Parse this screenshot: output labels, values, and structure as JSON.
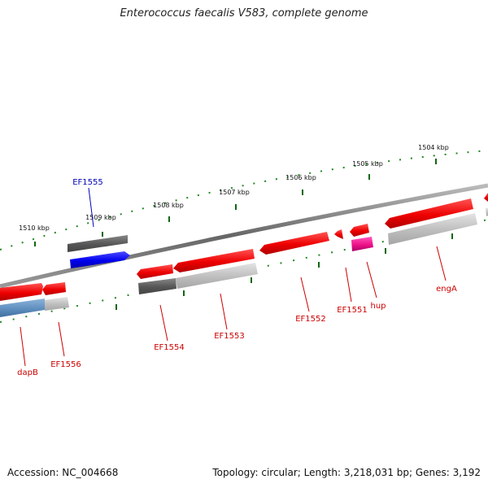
{
  "title": "Enterococcus faecalis V583, complete genome",
  "footer": {
    "accession": "Accession: NC_004668",
    "summary": "Topology: circular; Length: 3,218,031 bp; Genes: 3,192"
  },
  "scale_ticks": [
    "1510 kbp",
    "1509 kbp",
    "1508 kbp",
    "1507 kbp",
    "1506 kbp",
    "1505 kbp",
    "1504 kbp"
  ],
  "genes": [
    "EF1555",
    "dapB",
    "EF1556",
    "EF1554",
    "EF1553",
    "EF1552",
    "EF1551",
    "hup",
    "engA"
  ],
  "colors": {
    "forward": "#ee0000",
    "selected": "#0000ee",
    "highlight": "#ee1188",
    "muted": "#5f8fbf",
    "backbone": "#777777",
    "ticks": "#228822"
  }
}
